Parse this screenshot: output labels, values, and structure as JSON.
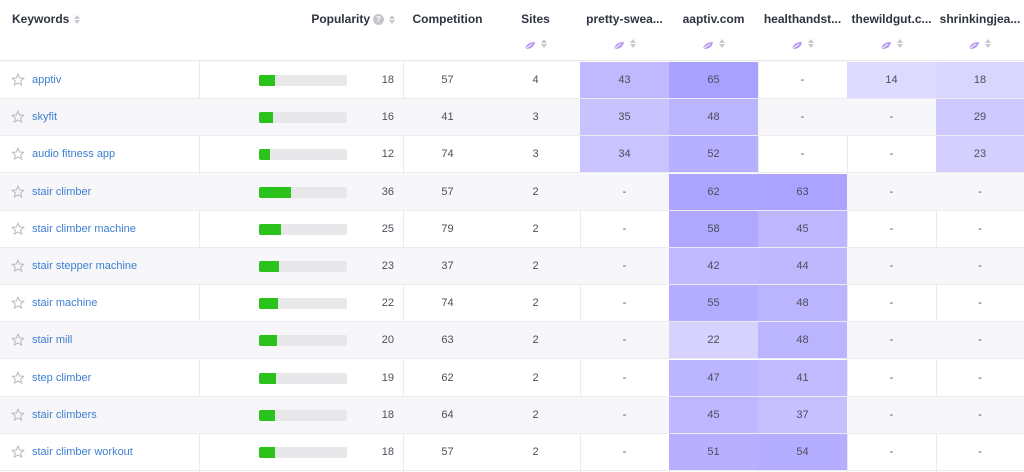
{
  "columns": {
    "keywords": "Keywords",
    "popularity": "Popularity",
    "competition": "Competition",
    "sites": "Sites",
    "apps": [
      "pretty-swea...",
      "aaptiv.com",
      "healthandst...",
      "thewildgut.c...",
      "shrinkingjea..."
    ]
  },
  "icons": {
    "help": "?",
    "star": "star-outline-icon",
    "leaf": "leaf-icon",
    "sort": "sort-arrows-icon"
  },
  "colors": {
    "link": "#3d7fd1",
    "popularity_fill": "#2bc21c",
    "heat_low": "#dcd8ff",
    "heat_high": "#a49bff"
  },
  "rows": [
    {
      "keyword": "apptiv",
      "popularity": "18",
      "popularity_fraction": 0.18,
      "competition": "57",
      "sites": "4",
      "apps": [
        "43",
        "65",
        "-",
        "14",
        "18"
      ]
    },
    {
      "keyword": "skyfit",
      "popularity": "16",
      "popularity_fraction": 0.16,
      "competition": "41",
      "sites": "3",
      "apps": [
        "35",
        "48",
        "-",
        "-",
        "29"
      ]
    },
    {
      "keyword": "audio fitness app",
      "popularity": "12",
      "popularity_fraction": 0.12,
      "competition": "74",
      "sites": "3",
      "apps": [
        "34",
        "52",
        "-",
        "-",
        "23"
      ]
    },
    {
      "keyword": "stair climber",
      "popularity": "36",
      "popularity_fraction": 0.36,
      "competition": "57",
      "sites": "2",
      "apps": [
        "-",
        "62",
        "63",
        "-",
        "-"
      ]
    },
    {
      "keyword": "stair climber machine",
      "popularity": "25",
      "popularity_fraction": 0.25,
      "competition": "79",
      "sites": "2",
      "apps": [
        "-",
        "58",
        "45",
        "-",
        "-"
      ]
    },
    {
      "keyword": "stair stepper machine",
      "popularity": "23",
      "popularity_fraction": 0.23,
      "competition": "37",
      "sites": "2",
      "apps": [
        "-",
        "42",
        "44",
        "-",
        "-"
      ]
    },
    {
      "keyword": "stair machine",
      "popularity": "22",
      "popularity_fraction": 0.22,
      "competition": "74",
      "sites": "2",
      "apps": [
        "-",
        "55",
        "48",
        "-",
        "-"
      ]
    },
    {
      "keyword": "stair mill",
      "popularity": "20",
      "popularity_fraction": 0.2,
      "competition": "63",
      "sites": "2",
      "apps": [
        "-",
        "22",
        "48",
        "-",
        "-"
      ]
    },
    {
      "keyword": "step climber",
      "popularity": "19",
      "popularity_fraction": 0.19,
      "competition": "62",
      "sites": "2",
      "apps": [
        "-",
        "47",
        "41",
        "-",
        "-"
      ]
    },
    {
      "keyword": "stair climbers",
      "popularity": "18",
      "popularity_fraction": 0.18,
      "competition": "64",
      "sites": "2",
      "apps": [
        "-",
        "45",
        "37",
        "-",
        "-"
      ]
    },
    {
      "keyword": "stair climber workout",
      "popularity": "18",
      "popularity_fraction": 0.18,
      "competition": "57",
      "sites": "2",
      "apps": [
        "-",
        "51",
        "54",
        "-",
        "-"
      ]
    }
  ]
}
